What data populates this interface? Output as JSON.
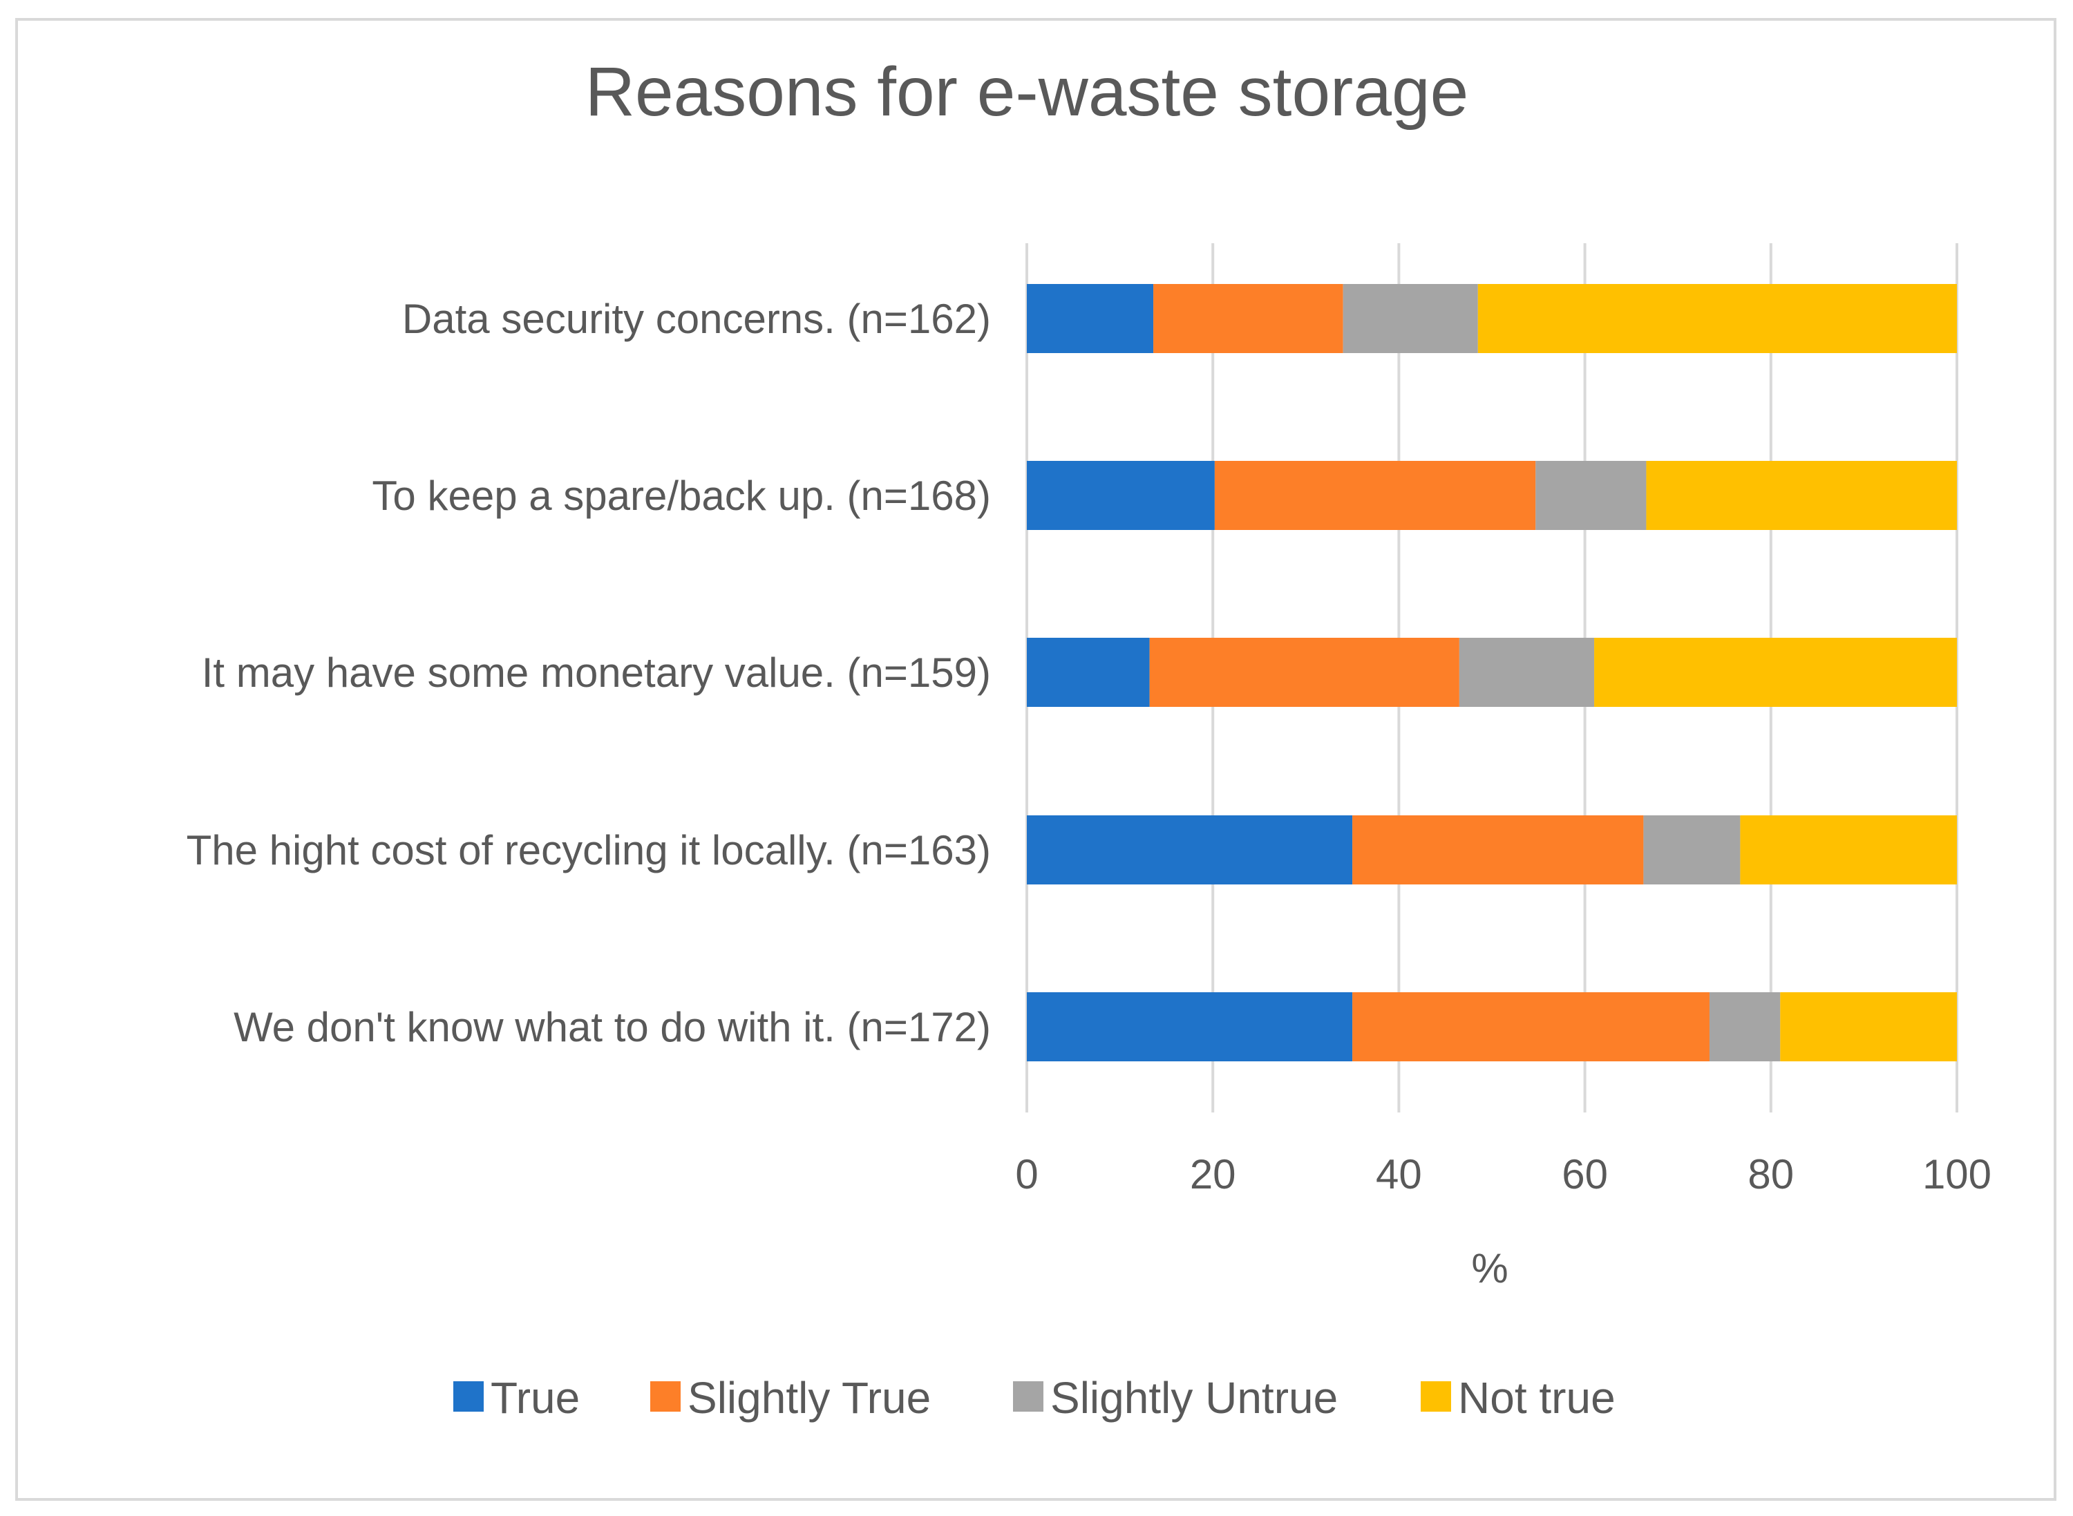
{
  "chart_data": {
    "type": "bar",
    "orientation": "horizontal",
    "stacked": true,
    "title": "Reasons for e-waste storage",
    "xlabel": "%",
    "ylabel": "",
    "xlim": [
      0,
      100
    ],
    "xticks": [
      "0",
      "20",
      "40",
      "60",
      "80",
      "100"
    ],
    "grid": true,
    "legend_position": "bottom",
    "categories": [
      "Data security concerns. (n=162)",
      "To keep a spare/back up. (n=168)",
      "It may have some monetary value. (n=159)",
      "The hight cost of recycling it locally. (n=163)",
      "We don't know what to do with it. (n=172)"
    ],
    "series": [
      {
        "name": "True",
        "color": "#1f73c9",
        "values": [
          13.6,
          20.2,
          13.2,
          35.0,
          35.0
        ]
      },
      {
        "name": "Slightly True",
        "color": "#fd7f28",
        "values": [
          20.4,
          34.5,
          33.3,
          31.3,
          38.4
        ]
      },
      {
        "name": "Slightly Untrue",
        "color": "#a5a5a5",
        "values": [
          14.5,
          11.9,
          14.5,
          10.4,
          7.6
        ]
      },
      {
        "name": "Not true",
        "color": "#ffc000",
        "values": [
          51.5,
          33.4,
          39.0,
          23.3,
          19.0
        ]
      }
    ]
  }
}
